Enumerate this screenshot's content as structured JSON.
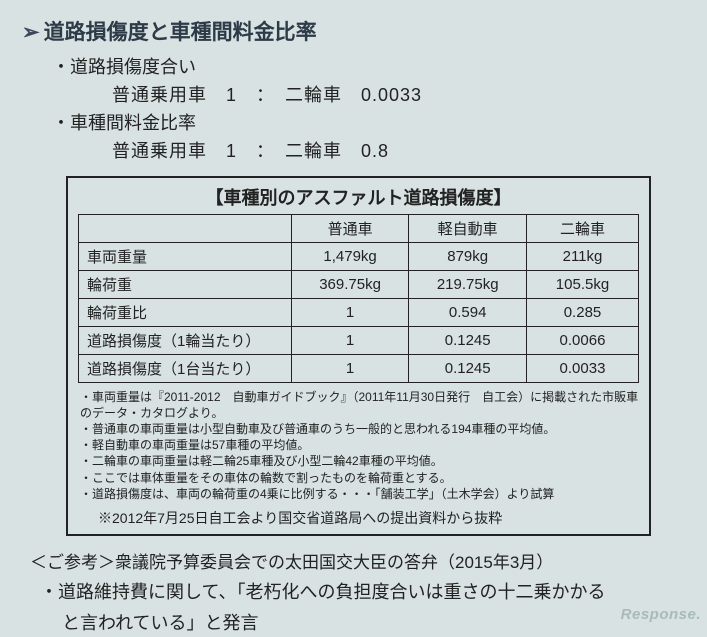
{
  "heading": "道路損傷度と車種間料金比率",
  "sub1_label": "・道路損傷度合い",
  "sub1_line": "普通乗用車　1　：　二輪車　0.0033",
  "sub2_label": "・車種間料金比率",
  "sub2_line": "普通乗用車　1　：　二輪車　0.8",
  "table": {
    "title": "【車種別のアスファルト道路損傷度】",
    "columns": [
      "",
      "普通車",
      "軽自動車",
      "二輪車"
    ],
    "rows": [
      [
        "車両重量",
        "1,479kg",
        "879kg",
        "211kg"
      ],
      [
        "輪荷重",
        "369.75kg",
        "219.75kg",
        "105.5kg"
      ],
      [
        "輪荷重比",
        "1",
        "0.594",
        "0.285"
      ],
      [
        "道路損傷度（1輪当たり）",
        "1",
        "0.1245",
        "0.0066"
      ],
      [
        "道路損傷度（1台当たり）",
        "1",
        "0.1245",
        "0.0033"
      ]
    ],
    "col_widths": [
      "38%",
      "21%",
      "21%",
      "20%"
    ]
  },
  "notes": [
    "・車両重量は『2011-2012　自動車ガイドブック』（2011年11月30日発行　自工会）に掲載された市販車のデータ・カタログより。",
    "・普通車の車両重量は小型自動車及び普通車のうち一般的と思われる194車種の平均値。",
    "・軽自動車の車両重量は57車種の平均値。",
    "・二輪車の車両重量は軽二輪25車種及び小型二輪42車種の平均値。",
    "・ここでは車体重量をその車体の輪数で割ったものを輪荷重とする。",
    "・道路損傷度は、車両の輪荷重の4乗に比例する・・・「舗装工学」（土木学会）より試算"
  ],
  "excerpt": "※2012年7月25日自工会より国交省道路局への提出資料から抜粋",
  "ref_title": "＜ご参考＞衆議院予算委員会での太田国交大臣の答弁（2015年3月）",
  "ref_body1": "・道路維持費に関して、「老朽化への負担度合いは重さの十二乗かかる",
  "ref_body2": "と言われている」と発言",
  "watermark": "Response."
}
